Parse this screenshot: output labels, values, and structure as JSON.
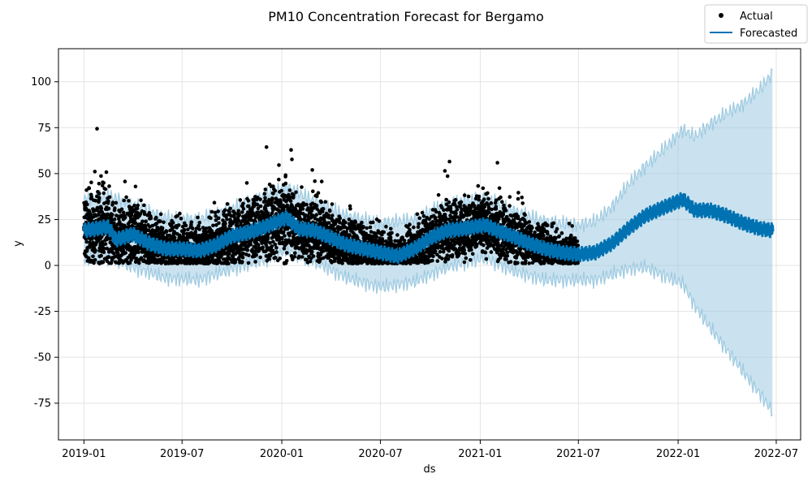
{
  "chart_data": {
    "type": "line",
    "title": "PM10 Concentration Forecast for Bergamo",
    "xlabel": "ds",
    "ylabel": "y",
    "x_range": [
      "2018-11-15",
      "2022-08-15"
    ],
    "ylim": [
      -95,
      118
    ],
    "x_ticks": [
      "2019-01",
      "2019-07",
      "2020-01",
      "2020-07",
      "2021-01",
      "2021-07",
      "2022-01",
      "2022-07"
    ],
    "y_ticks": [
      -75,
      -50,
      -25,
      0,
      25,
      50,
      75,
      100
    ],
    "grid": true,
    "legend_position": "top-right",
    "legend": [
      "Actual",
      "Forecasted"
    ],
    "colors": {
      "actual": "#000000",
      "forecast": "#0072B2",
      "interval": "#9ecae1"
    },
    "actual_period": [
      "2019-01-01",
      "2021-06-30"
    ],
    "series": [
      {
        "name": "Forecasted",
        "x": [
          "2019-01-01",
          "2019-02-15",
          "2019-03-01",
          "2019-04-01",
          "2019-05-01",
          "2019-06-01",
          "2019-07-01",
          "2019-08-01",
          "2019-09-01",
          "2019-10-01",
          "2019-11-01",
          "2019-12-01",
          "2020-01-10",
          "2020-02-01",
          "2020-03-01",
          "2020-04-01",
          "2020-05-01",
          "2020-06-01",
          "2020-07-01",
          "2020-08-01",
          "2020-09-01",
          "2020-10-01",
          "2020-11-01",
          "2020-12-01",
          "2021-01-10",
          "2021-02-01",
          "2021-03-01",
          "2021-04-01",
          "2021-05-01",
          "2021-06-01",
          "2021-07-01",
          "2021-08-01",
          "2021-09-01",
          "2021-10-01",
          "2021-11-01",
          "2021-12-01",
          "2022-01-10",
          "2022-02-01",
          "2022-03-01",
          "2022-04-01",
          "2022-05-01",
          "2022-06-01",
          "2022-06-25"
        ],
        "values": [
          19,
          21,
          14,
          17,
          12,
          9,
          9,
          8,
          11,
          16,
          18,
          21,
          26,
          20,
          19,
          15,
          11,
          9,
          7,
          5,
          9,
          15,
          19,
          20,
          22,
          19,
          16,
          12,
          9,
          7,
          6,
          7,
          12,
          20,
          27,
          31,
          36,
          30,
          30,
          27,
          23,
          20,
          19
        ]
      },
      {
        "name": "interval_upper",
        "x": [
          "2019-01-01",
          "2019-02-15",
          "2019-04-01",
          "2019-06-01",
          "2019-08-01",
          "2019-10-01",
          "2019-12-01",
          "2020-01-10",
          "2020-03-01",
          "2020-05-01",
          "2020-07-01",
          "2020-09-01",
          "2020-11-01",
          "2021-01-10",
          "2021-03-01",
          "2021-05-01",
          "2021-07-01",
          "2021-08-01",
          "2021-09-01",
          "2021-10-01",
          "2021-11-01",
          "2021-12-01",
          "2022-01-10",
          "2022-02-01",
          "2022-03-01",
          "2022-04-01",
          "2022-05-01",
          "2022-06-01",
          "2022-06-25"
        ],
        "values": [
          36,
          38,
          33,
          26,
          25,
          31,
          38,
          43,
          35,
          27,
          23,
          25,
          34,
          37,
          30,
          24,
          22,
          24,
          32,
          44,
          54,
          62,
          74,
          70,
          77,
          83,
          88,
          96,
          105
        ]
      },
      {
        "name": "interval_lower",
        "x": [
          "2019-01-01",
          "2019-02-15",
          "2019-04-01",
          "2019-06-01",
          "2019-08-01",
          "2019-10-01",
          "2019-12-01",
          "2020-01-10",
          "2020-03-01",
          "2020-05-01",
          "2020-07-01",
          "2020-09-01",
          "2020-11-01",
          "2021-01-10",
          "2021-03-01",
          "2021-05-01",
          "2021-07-01",
          "2021-08-01",
          "2021-09-01",
          "2021-10-01",
          "2021-11-01",
          "2021-12-01",
          "2022-01-10",
          "2022-02-01",
          "2022-03-01",
          "2022-04-01",
          "2022-05-01",
          "2022-06-01",
          "2022-06-25"
        ],
        "values": [
          3,
          4,
          -1,
          -7,
          -8,
          -2,
          3,
          8,
          2,
          -7,
          -12,
          -9,
          -1,
          4,
          -3,
          -8,
          -8,
          -8,
          -5,
          -2,
          -1,
          -5,
          -10,
          -22,
          -34,
          -46,
          -58,
          -70,
          -80
        ]
      }
    ]
  }
}
